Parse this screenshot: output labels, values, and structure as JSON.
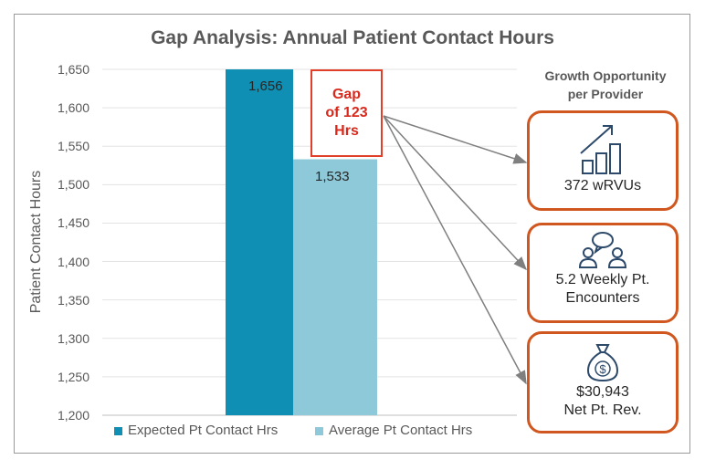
{
  "chart_data": {
    "type": "bar",
    "title": "Gap Analysis: Annual Patient Contact Hours",
    "ylabel": "Patient Contact Hours",
    "xlabel": "",
    "ylim": [
      1200,
      1650
    ],
    "yticks": [
      "1,200",
      "1,250",
      "1,300",
      "1,350",
      "1,400",
      "1,450",
      "1,500",
      "1,550",
      "1,600",
      "1,650"
    ],
    "series": [
      {
        "name": "Expected Pt Contact Hrs",
        "values": [
          1656
        ],
        "label": "1,656",
        "color": "#0e8fb3"
      },
      {
        "name": "Average Pt Contact Hrs",
        "values": [
          1533
        ],
        "label": "1,533",
        "color": "#8ec9d9"
      }
    ],
    "legend": "bottom",
    "grid": true
  },
  "gap_annotation": {
    "line1": "Gap",
    "line2": "of 123",
    "line3": "Hrs"
  },
  "side_panel": {
    "title_line1": "Growth Opportunity",
    "title_line2": "per Provider",
    "cards": [
      {
        "icon": "growth-chart-icon",
        "line1": "372 wRVUs",
        "line2": ""
      },
      {
        "icon": "conversation-people-icon",
        "line1": "5.2 Weekly Pt.",
        "line2": "Encounters"
      },
      {
        "icon": "money-bag-icon",
        "line1": "$30,943",
        "line2": "Net Pt. Rev."
      }
    ]
  },
  "colors": {
    "accent_border": "#d0571f",
    "gap_red": "#e0402a",
    "arrow_gray": "#7f7f7f"
  }
}
